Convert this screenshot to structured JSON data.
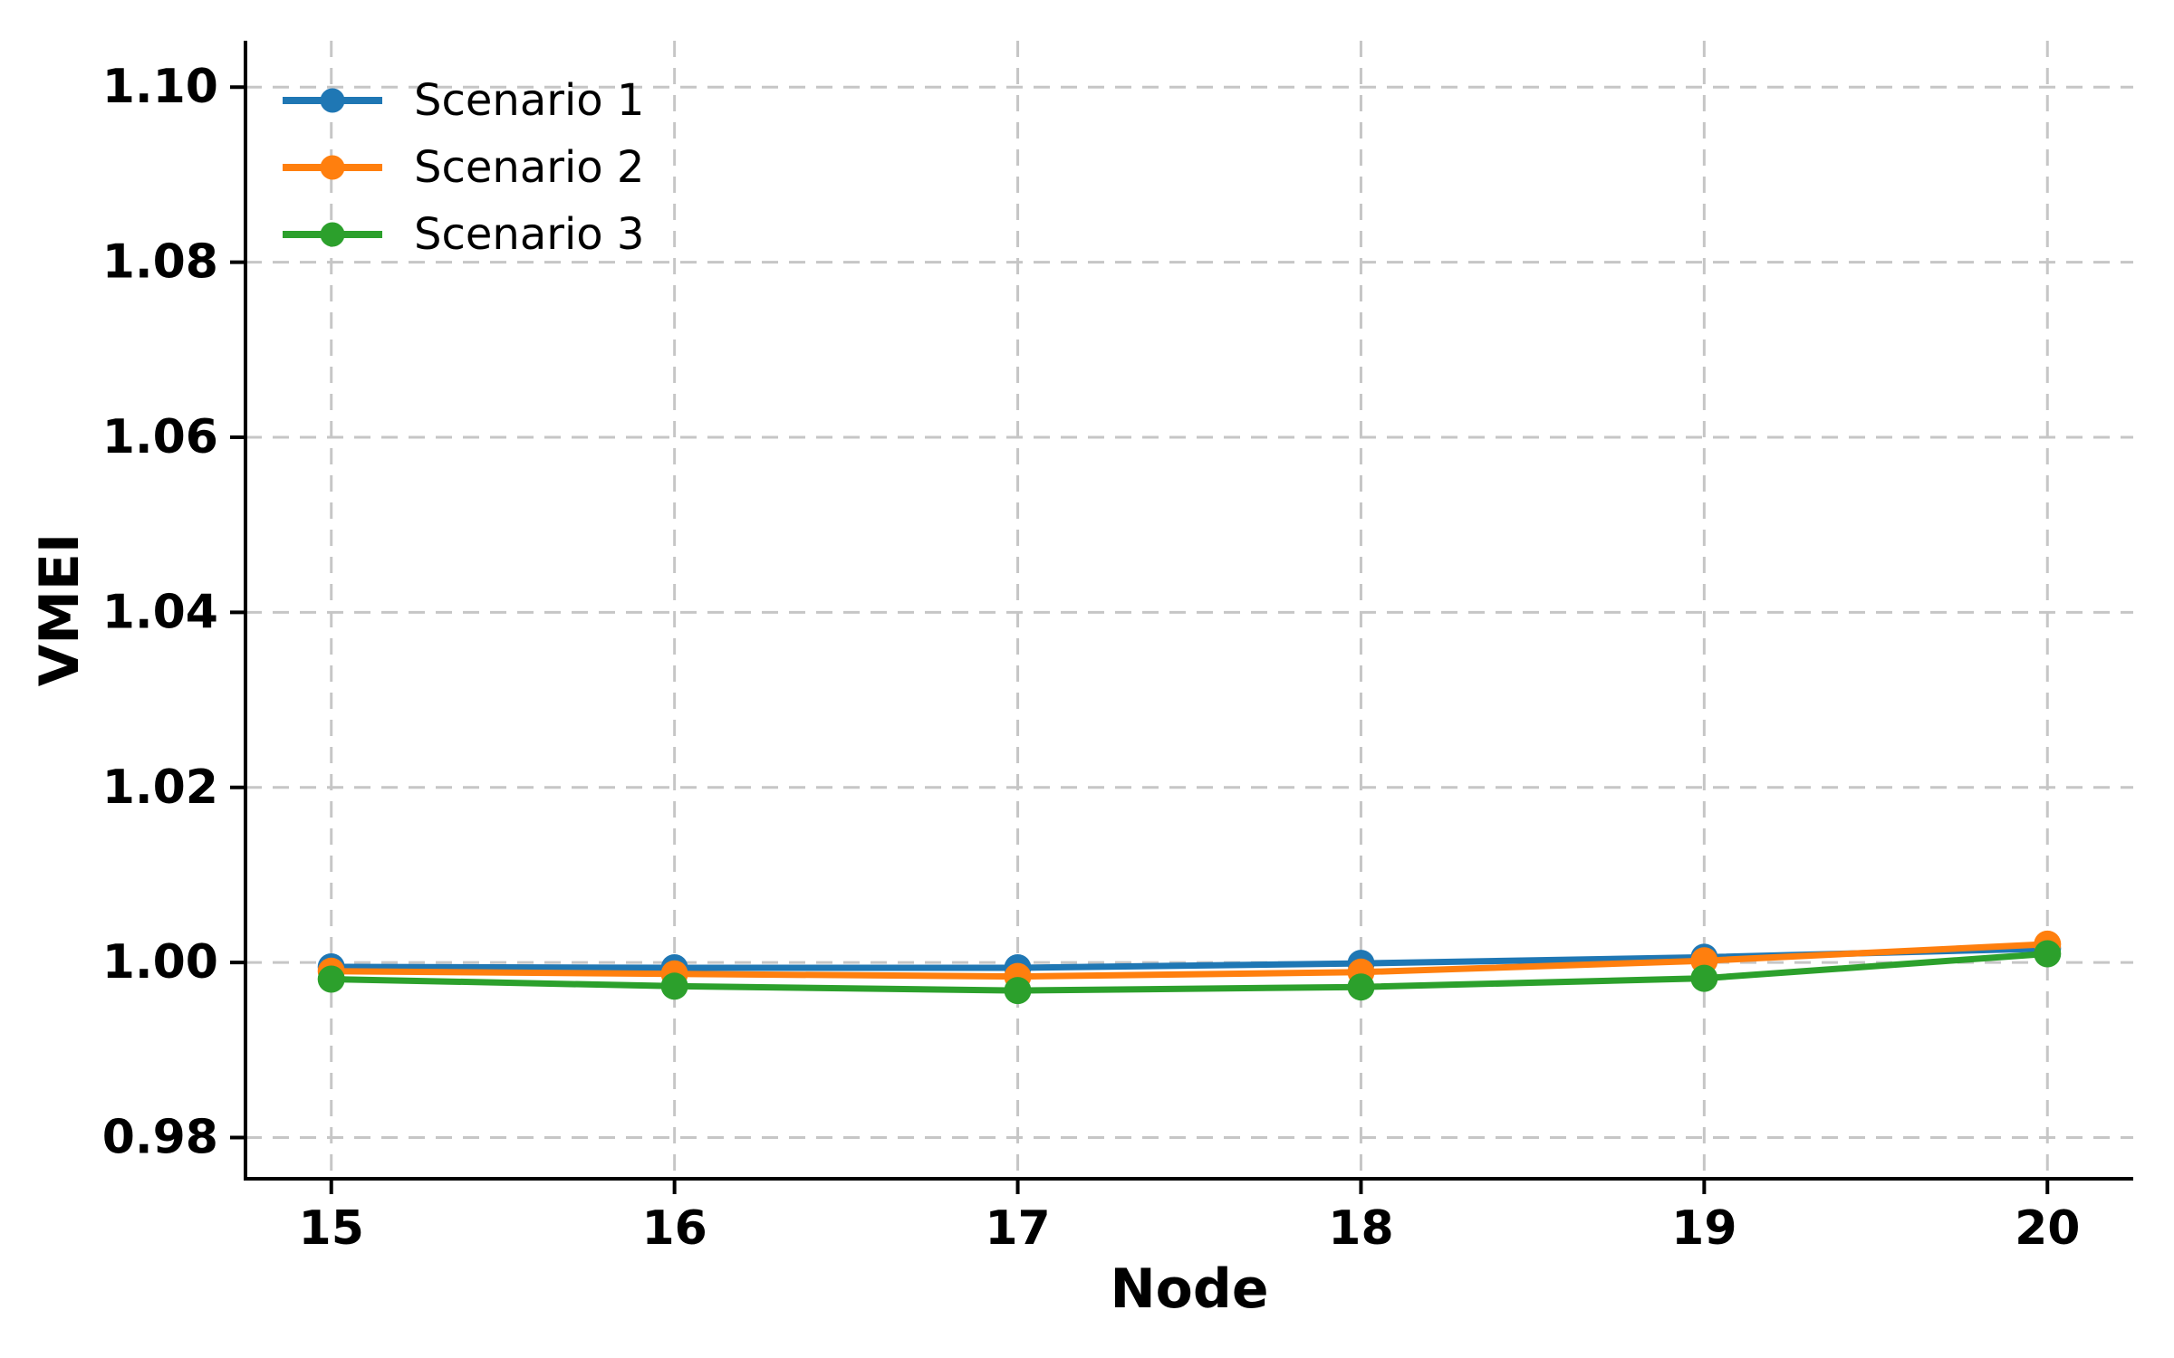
{
  "figure": {
    "background": "#ffffff",
    "text_color": "#000000",
    "spine_color": "#000000",
    "grid_color": "#c6c6c6"
  },
  "chart_data": {
    "type": "line",
    "title": "",
    "xlabel": "Node",
    "ylabel": "VMEI",
    "x": [
      15,
      16,
      17,
      18,
      19,
      20
    ],
    "xtick_labels": [
      "15",
      "16",
      "17",
      "18",
      "19",
      "20"
    ],
    "yticks": [
      0.98,
      1.0,
      1.02,
      1.04,
      1.06,
      1.08,
      1.1
    ],
    "ytick_labels": [
      "0.98",
      "1.00",
      "1.02",
      "1.04",
      "1.06",
      "1.08",
      "1.10"
    ],
    "xlim": [
      14.75,
      20.25
    ],
    "ylim": [
      0.9753,
      1.1053
    ],
    "grid": true,
    "grid_style": "dashed",
    "legend_position": "upper-left",
    "series": [
      {
        "name": "Scenario 1",
        "color": "#1f77b4",
        "marker": "circle",
        "values": [
          0.9995,
          0.9994,
          0.9994,
          0.9999,
          1.0006,
          1.0016
        ]
      },
      {
        "name": "Scenario 2",
        "color": "#ff7f0e",
        "marker": "circle",
        "values": [
          0.999,
          0.9987,
          0.9984,
          0.9989,
          1.0002,
          1.0021
        ]
      },
      {
        "name": "Scenario 3",
        "color": "#2ca02c",
        "marker": "circle",
        "values": [
          0.9981,
          0.9973,
          0.9968,
          0.9972,
          0.9982,
          1.001
        ]
      }
    ]
  }
}
